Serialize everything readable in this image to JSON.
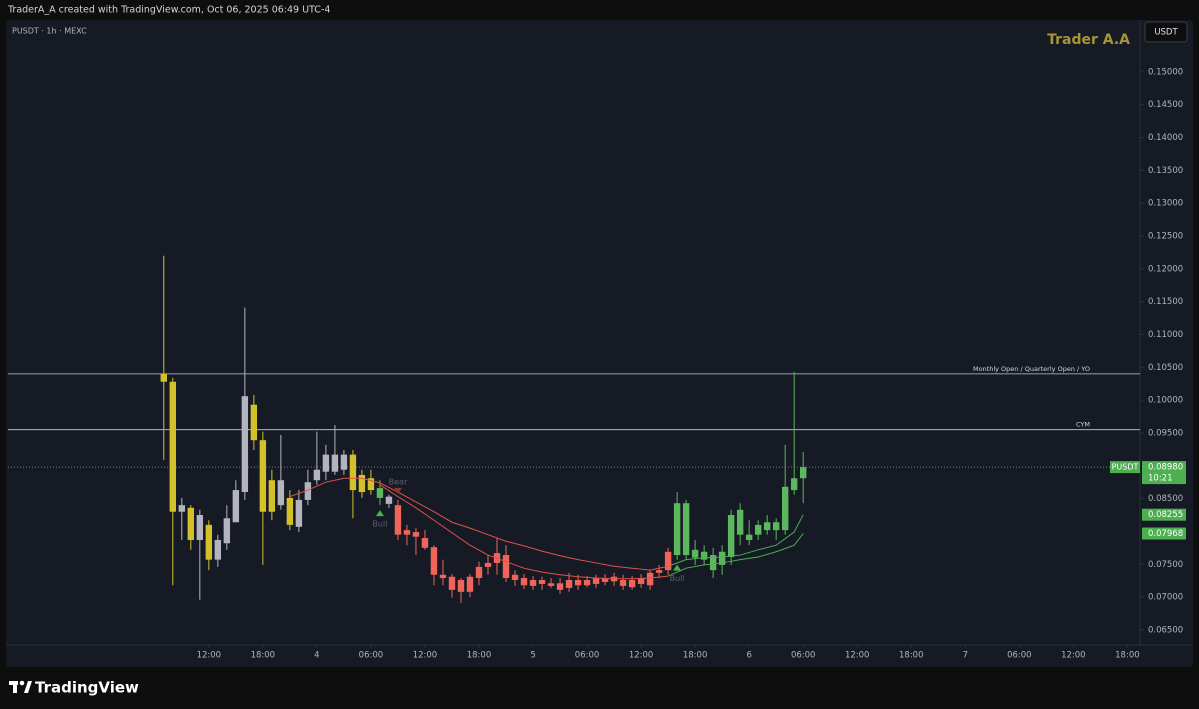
{
  "header": {
    "credit": "TraderA_A created with TradingView.com, Oct 06, 2025 06:49 UTC-4",
    "symbol_info": "PUSDT · 1h · MEXC",
    "watermark": "Trader A.A",
    "currency": "USDT"
  },
  "chart_data": {
    "type": "candlestick",
    "x": [
      0,
      1,
      2,
      3,
      4,
      5,
      6,
      7,
      8,
      9,
      10,
      11,
      12,
      13,
      14,
      15,
      16,
      17,
      18,
      19,
      20,
      21,
      22,
      23,
      24,
      25,
      26,
      27,
      28,
      29,
      30,
      31,
      32,
      33,
      34,
      35,
      36,
      37,
      38,
      39,
      40,
      41,
      42,
      43,
      44,
      45,
      46,
      47,
      48,
      49,
      50,
      51,
      52,
      53,
      54,
      55,
      56,
      57,
      58,
      59,
      60,
      61,
      62,
      63,
      64,
      65,
      66,
      67,
      68,
      69,
      70,
      71
    ],
    "open": [
      0.1028,
      0.1028,
      0.083,
      0.0836,
      0.0787,
      0.081,
      0.0757,
      0.0782,
      0.0814,
      0.086,
      0.0993,
      0.0939,
      0.0878,
      0.084,
      0.0851,
      0.0807,
      0.0848,
      0.0878,
      0.0891,
      0.0891,
      0.0917,
      0.0917,
      0.0886,
      0.0881,
      0.0851,
      0.0853,
      0.084,
      0.0802,
      0.0799,
      0.079,
      0.0776,
      0.0734,
      0.0731,
      0.0726,
      0.0708,
      0.0729,
      0.0746,
      0.0752,
      0.0764,
      0.0734,
      0.0729,
      0.0726,
      0.0726,
      0.0721,
      0.0721,
      0.0714,
      0.0726,
      0.0718,
      0.0729,
      0.0729,
      0.0731,
      0.0726,
      0.0726,
      0.0729,
      0.0718,
      0.0737,
      0.0741,
      0.0764,
      0.0843,
      0.076,
      0.0757,
      0.0741,
      0.0749,
      0.0761,
      0.0795,
      0.0787,
      0.0795,
      0.0802,
      0.0802,
      0.0802,
      0.0863,
      0.0881
    ],
    "high": [
      0.122,
      0.1034,
      0.0851,
      0.084,
      0.0833,
      0.0817,
      0.0795,
      0.084,
      0.0878,
      0.1141,
      0.1008,
      0.0952,
      0.0894,
      0.0947,
      0.0863,
      0.0863,
      0.0894,
      0.0952,
      0.0932,
      0.0962,
      0.0924,
      0.0924,
      0.0894,
      0.0894,
      0.0878,
      0.0856,
      0.0848,
      0.081,
      0.0805,
      0.0802,
      0.0779,
      0.0757,
      0.0735,
      0.0729,
      0.0735,
      0.0754,
      0.0764,
      0.079,
      0.0779,
      0.0741,
      0.0735,
      0.0732,
      0.0731,
      0.0729,
      0.0729,
      0.0737,
      0.0734,
      0.0732,
      0.0734,
      0.0735,
      0.0737,
      0.0734,
      0.0732,
      0.0735,
      0.0741,
      0.0749,
      0.0775,
      0.086,
      0.0848,
      0.0787,
      0.0779,
      0.0775,
      0.0779,
      0.0833,
      0.0843,
      0.0817,
      0.0817,
      0.0825,
      0.082,
      0.0932,
      0.1043,
      0.0921
    ],
    "low": [
      0.0909,
      0.0718,
      0.0787,
      0.0772,
      0.0696,
      0.0741,
      0.0746,
      0.0772,
      0.0814,
      0.0848,
      0.0924,
      0.0749,
      0.0817,
      0.0833,
      0.0802,
      0.0799,
      0.084,
      0.0871,
      0.0878,
      0.0886,
      0.0886,
      0.082,
      0.0851,
      0.0856,
      0.084,
      0.0836,
      0.0787,
      0.0779,
      0.0764,
      0.0772,
      0.0718,
      0.0718,
      0.0699,
      0.0691,
      0.07,
      0.0718,
      0.0734,
      0.0734,
      0.0723,
      0.0717,
      0.0712,
      0.0711,
      0.0711,
      0.0714,
      0.0705,
      0.0708,
      0.0711,
      0.0715,
      0.0714,
      0.0718,
      0.0717,
      0.0711,
      0.0711,
      0.0714,
      0.0711,
      0.0729,
      0.0734,
      0.0757,
      0.0757,
      0.0749,
      0.0749,
      0.0729,
      0.0734,
      0.0749,
      0.0779,
      0.0779,
      0.0787,
      0.0795,
      0.0787,
      0.0795,
      0.0856,
      0.0843
    ],
    "close": [
      0.104,
      0.083,
      0.084,
      0.0787,
      0.0825,
      0.0757,
      0.0787,
      0.082,
      0.0863,
      0.1006,
      0.0939,
      0.083,
      0.083,
      0.0878,
      0.081,
      0.0848,
      0.0875,
      0.0894,
      0.0917,
      0.0917,
      0.0894,
      0.0863,
      0.086,
      0.0863,
      0.0866,
      0.0842,
      0.0795,
      0.0795,
      0.0792,
      0.0775,
      0.0734,
      0.0729,
      0.0711,
      0.0708,
      0.0731,
      0.0746,
      0.0752,
      0.0767,
      0.0729,
      0.0726,
      0.0718,
      0.0717,
      0.072,
      0.0717,
      0.0711,
      0.0726,
      0.0718,
      0.0726,
      0.072,
      0.0723,
      0.0724,
      0.0717,
      0.0715,
      0.072,
      0.0737,
      0.0741,
      0.0769,
      0.0843,
      0.0764,
      0.0772,
      0.0769,
      0.0764,
      0.0769,
      0.0825,
      0.0833,
      0.0795,
      0.081,
      0.0814,
      0.0814,
      0.0868,
      0.0881,
      0.0898
    ],
    "colors": [
      "#d4c12a",
      "#d4c12a",
      "#b2b5be",
      "#d4c12a",
      "#b2b5be",
      "#d4c12a",
      "#b2b5be",
      "#b2b5be",
      "#b2b5be",
      "#b2b5be",
      "#d4c12a",
      "#d4c12a",
      "#d4c12a",
      "#b2b5be",
      "#d4c12a",
      "#b2b5be",
      "#b2b5be",
      "#b2b5be",
      "#b2b5be",
      "#b2b5be",
      "#b2b5be",
      "#d4c12a",
      "#d4c12a",
      "#d4c12a",
      "#5cb85c",
      "#b2b5be",
      "#f0655a",
      "#f0655a",
      "#f0655a",
      "#f0655a",
      "#f0655a",
      "#f0655a",
      "#f0655a",
      "#f0655a",
      "#f0655a",
      "#f0655a",
      "#f0655a",
      "#f0655a",
      "#f0655a",
      "#f0655a",
      "#f0655a",
      "#f0655a",
      "#f0655a",
      "#f0655a",
      "#f0655a",
      "#f0655a",
      "#f0655a",
      "#f0655a",
      "#f0655a",
      "#f0655a",
      "#f0655a",
      "#f0655a",
      "#f0655a",
      "#f0655a",
      "#f0655a",
      "#f0655a",
      "#f0655a",
      "#5cb85c",
      "#5cb85c",
      "#5cb85c",
      "#5cb85c",
      "#5cb85c",
      "#5cb85c",
      "#5cb85c",
      "#5cb85c",
      "#5cb85c",
      "#5cb85c",
      "#5cb85c",
      "#5cb85c",
      "#5cb85c",
      "#5cb85c",
      "#5cb85c"
    ],
    "lines": [
      {
        "color": "#e0524a",
        "x": [
          14,
          16,
          18,
          20,
          22,
          24,
          26,
          28,
          30,
          32,
          34,
          36,
          38,
          40,
          42,
          44,
          46,
          48,
          50,
          52,
          54,
          56
        ],
        "values": [
          0.0853,
          0.0863,
          0.0875,
          0.0881,
          0.0881,
          0.0874,
          0.086,
          0.0845,
          0.083,
          0.0814,
          0.0805,
          0.0795,
          0.0785,
          0.0778,
          0.077,
          0.0763,
          0.0757,
          0.0752,
          0.0747,
          0.0744,
          0.0741,
          0.0747
        ]
      },
      {
        "color": "#e0524a",
        "x": [
          24,
          26,
          28,
          30,
          32,
          34,
          36,
          38,
          40,
          42,
          44,
          46,
          48,
          50,
          52,
          54,
          56
        ],
        "values": [
          0.0871,
          0.0853,
          0.0836,
          0.0817,
          0.0798,
          0.0779,
          0.0764,
          0.0754,
          0.0744,
          0.0738,
          0.0734,
          0.0731,
          0.0729,
          0.0728,
          0.0728,
          0.0729,
          0.0732
        ]
      },
      {
        "color": "#4caf50",
        "x": [
          56,
          58,
          60,
          62,
          64,
          66,
          68,
          70,
          71
        ],
        "values": [
          0.0747,
          0.0757,
          0.076,
          0.0761,
          0.0764,
          0.0772,
          0.0779,
          0.0799,
          0.08255
        ]
      },
      {
        "color": "#4caf50",
        "x": [
          56,
          58,
          60,
          62,
          64,
          66,
          68,
          70,
          71
        ],
        "values": [
          0.0732,
          0.0744,
          0.0749,
          0.0752,
          0.0757,
          0.0761,
          0.0769,
          0.0779,
          0.07968
        ]
      }
    ],
    "levels": [
      {
        "value": 0.104,
        "label": "Monthly Open / Quarterly Open / YO"
      },
      {
        "value": 0.0955,
        "label": "CYM"
      }
    ],
    "last_price": {
      "value": 0.0898,
      "label": "0.08980",
      "symbol": "PUSDT",
      "countdown": "10:21",
      "color": "#4caf50"
    },
    "line_price_labels": [
      {
        "value": 0.08255,
        "label": "0.08255"
      },
      {
        "value": 0.07968,
        "label": "0.07968"
      }
    ],
    "signals": [
      {
        "x": 26,
        "label": "Bear",
        "direction": "down"
      },
      {
        "x": 24,
        "label": "Bull",
        "direction": "up"
      },
      {
        "x": 57,
        "label": "Bull",
        "direction": "up"
      }
    ],
    "xlim": [
      -17.3,
      108.4
    ],
    "ylim": [
      0.0627,
      0.1576
    ],
    "yticks": [
      {
        "value": 0.15,
        "label": "0.15000"
      },
      {
        "value": 0.145,
        "label": "0.14500"
      },
      {
        "value": 0.14,
        "label": "0.14000"
      },
      {
        "value": 0.135,
        "label": "0.13500"
      },
      {
        "value": 0.13,
        "label": "0.13000"
      },
      {
        "value": 0.125,
        "label": "0.12500"
      },
      {
        "value": 0.12,
        "label": "0.12000"
      },
      {
        "value": 0.115,
        "label": "0.11500"
      },
      {
        "value": 0.11,
        "label": "0.11000"
      },
      {
        "value": 0.105,
        "label": "0.10500"
      },
      {
        "value": 0.1,
        "label": "0.10000"
      },
      {
        "value": 0.095,
        "label": "0.09500"
      },
      {
        "value": 0.09,
        "label": "0.09000"
      },
      {
        "value": 0.085,
        "label": "0.08500"
      },
      {
        "value": 0.08,
        "label": "0.08000"
      },
      {
        "value": 0.075,
        "label": "0.07500"
      },
      {
        "value": 0.07,
        "label": "0.07000"
      },
      {
        "value": 0.065,
        "label": "0.06500"
      }
    ],
    "xticks": [
      {
        "value": 5,
        "label": "12:00"
      },
      {
        "value": 11,
        "label": "18:00"
      },
      {
        "value": 17,
        "label": "4"
      },
      {
        "value": 23,
        "label": "06:00"
      },
      {
        "value": 29,
        "label": "12:00"
      },
      {
        "value": 35,
        "label": "18:00"
      },
      {
        "value": 41,
        "label": "5"
      },
      {
        "value": 47,
        "label": "06:00"
      },
      {
        "value": 53,
        "label": "12:00"
      },
      {
        "value": 59,
        "label": "18:00"
      },
      {
        "value": 65,
        "label": "6"
      },
      {
        "value": 71,
        "label": "06:00"
      },
      {
        "value": 77,
        "label": "12:00"
      },
      {
        "value": 83,
        "label": "18:00"
      },
      {
        "value": 89,
        "label": "7"
      },
      {
        "value": 95,
        "label": "06:00"
      },
      {
        "value": 101,
        "label": "12:00"
      },
      {
        "value": 107,
        "label": "18:00"
      }
    ]
  },
  "footer": {
    "brand": "TradingView"
  }
}
